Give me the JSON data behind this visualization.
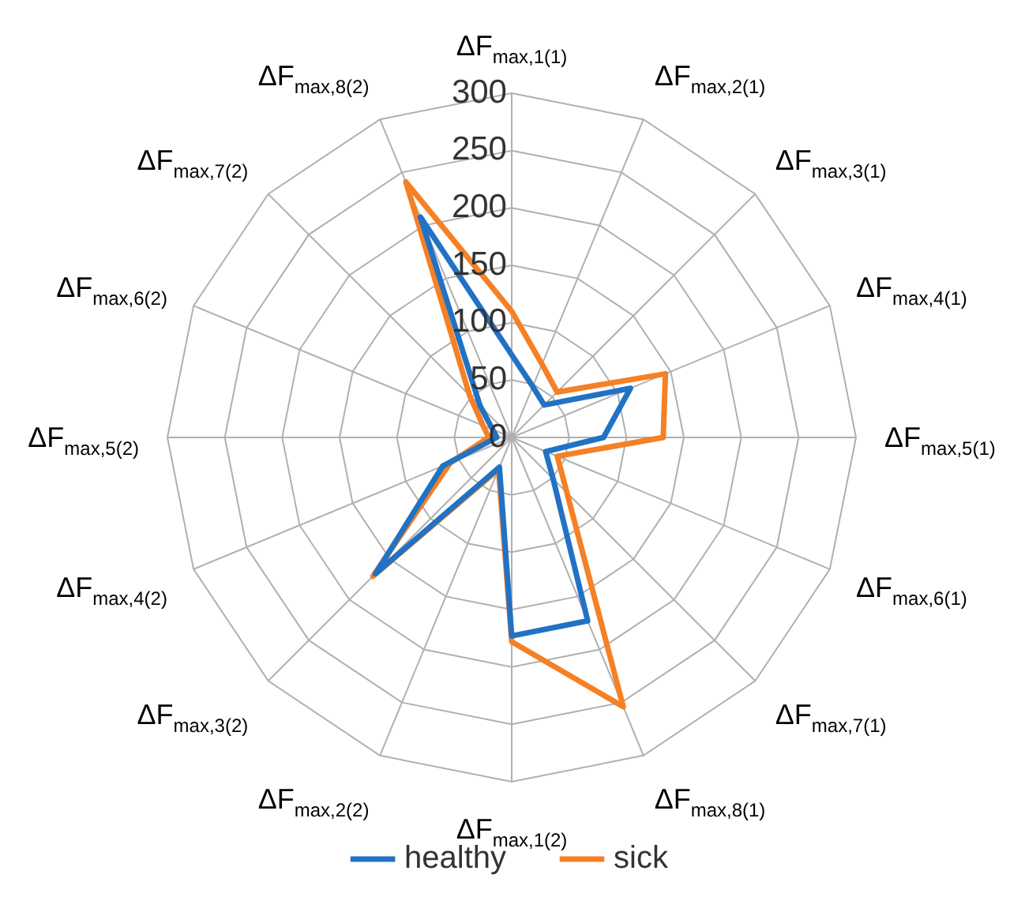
{
  "chart_data": {
    "type": "radar",
    "categories": [
      "ΔF$_{max,1(1)}$",
      "ΔF$_{max,2(1)}$",
      "ΔF$_{max,3(1)}$",
      "ΔF$_{max,4(1)}$",
      "ΔF$_{max,5(1)}$",
      "ΔF$_{max,6(1)}$",
      "ΔF$_{max,7(1)}$",
      "ΔF$_{max,8(1)}$",
      "ΔF$_{max,1(2)}$",
      "ΔF$_{max,2(2)}$",
      "ΔF$_{max,3(2)}$",
      "ΔF$_{max,4(2)}$",
      "ΔF$_{max,5(2)}$",
      "ΔF$_{max,6(2)}$",
      "ΔF$_{max,7(2)}$",
      "ΔF$_{max,8(2)}$"
    ],
    "series": [
      {
        "name": "healthy",
        "color": "#2272c3",
        "values": [
          72,
          48,
          40,
          112,
          80,
          32,
          51,
          173,
          173,
          28,
          168,
          65,
          13,
          18,
          39,
          208
        ]
      },
      {
        "name": "sick",
        "color": "#f58025",
        "values": [
          110,
          69,
          56,
          145,
          132,
          43,
          68,
          254,
          178,
          30,
          171,
          58,
          20,
          27,
          52,
          241
        ]
      }
    ],
    "ylim": [
      0,
      300
    ],
    "yticks": [
      0,
      50,
      100,
      150,
      200,
      250,
      300
    ],
    "grid": true,
    "legend": "bottom",
    "marker": "none",
    "line_style": "solid"
  }
}
